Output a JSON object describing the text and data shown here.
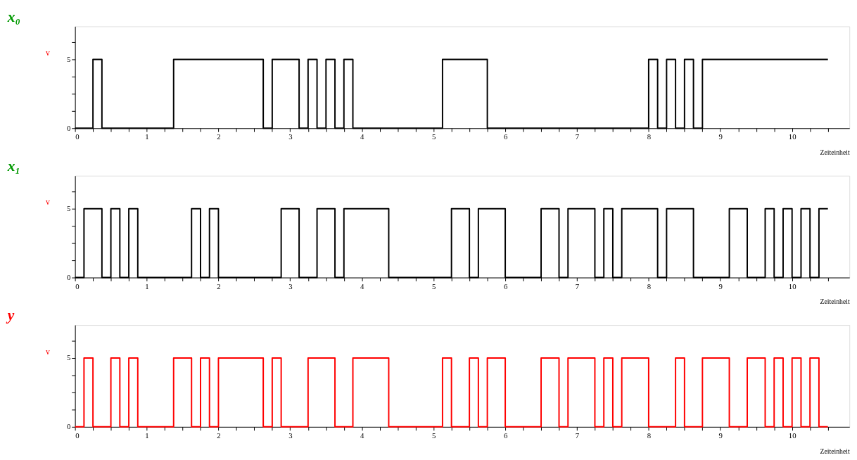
{
  "chart_data": [
    {
      "type": "step",
      "title": "x₀",
      "ylabel": "v",
      "xlabel": "Zeiteinheit",
      "xlim": [
        0,
        10.8
      ],
      "ylim": [
        0,
        7.4
      ],
      "xticks": [
        0,
        {
          "value": 0.25,
          "label": null
        },
        {
          "value": 0.5,
          "label": null
        },
        {
          "value": 0.75,
          "label": null
        },
        1,
        {
          "value": 1.25,
          "label": null
        },
        {
          "value": 1.5,
          "label": null
        },
        {
          "value": 1.75,
          "label": null
        },
        2,
        {
          "value": 2.25,
          "label": null
        },
        {
          "value": 2.5,
          "label": null
        },
        {
          "value": 2.75,
          "label": null
        },
        3,
        {
          "value": 3.25,
          "label": null
        },
        {
          "value": 3.5,
          "label": null
        },
        {
          "value": 3.75,
          "label": null
        },
        4,
        {
          "value": 4.25,
          "label": null
        },
        {
          "value": 4.5,
          "label": null
        },
        {
          "value": 4.75,
          "label": null
        },
        5,
        {
          "value": 5.25,
          "label": null
        },
        {
          "value": 5.5,
          "label": null
        },
        {
          "value": 5.75,
          "label": null
        },
        6,
        {
          "value": 6.25,
          "label": null
        },
        {
          "value": 6.5,
          "label": null
        },
        {
          "value": 6.75,
          "label": null
        },
        7,
        {
          "value": 7.25,
          "label": null
        },
        {
          "value": 7.5,
          "label": null
        },
        {
          "value": 7.75,
          "label": null
        },
        8,
        {
          "value": 8.25,
          "label": null
        },
        {
          "value": 8.5,
          "label": null
        },
        {
          "value": 8.75,
          "label": null
        },
        9,
        {
          "value": 9.25,
          "label": null
        },
        {
          "value": 9.5,
          "label": null
        },
        {
          "value": 9.75,
          "label": null
        },
        10,
        {
          "value": 10.25,
          "label": null
        },
        {
          "value": 10.5,
          "label": null
        }
      ],
      "yticks": [
        0,
        {
          "value": 1.25,
          "label": null
        },
        {
          "value": 2.5,
          "label": null
        },
        {
          "value": 3.75,
          "label": null
        },
        5,
        {
          "value": 6.25,
          "label": null
        }
      ],
      "grid": false,
      "marker": "none",
      "line_style": "solid",
      "series": [
        {
          "color": "#000000",
          "x": [
            0,
            0.25,
            0.375,
            1.375,
            2.625,
            2.75,
            3.125,
            3.25,
            3.375,
            3.5,
            3.625,
            3.75,
            3.875,
            5.125,
            5.75,
            8,
            8.125,
            8.25,
            8.375,
            8.5,
            8.625,
            8.75,
            10.5
          ],
          "values": [
            0,
            5,
            0,
            5,
            0,
            5,
            0,
            5,
            0,
            5,
            0,
            5,
            0,
            5,
            0,
            5,
            0,
            5,
            0,
            5,
            0,
            5,
            5
          ]
        }
      ]
    },
    {
      "type": "step",
      "title": "x₁",
      "ylabel": "v",
      "xlabel": "Zeiteinheit",
      "xlim": [
        0,
        10.8
      ],
      "ylim": [
        0,
        7.4
      ],
      "xticks": [
        0,
        {
          "value": 0.25,
          "label": null
        },
        {
          "value": 0.5,
          "label": null
        },
        {
          "value": 0.75,
          "label": null
        },
        1,
        {
          "value": 1.25,
          "label": null
        },
        {
          "value": 1.5,
          "label": null
        },
        {
          "value": 1.75,
          "label": null
        },
        2,
        {
          "value": 2.25,
          "label": null
        },
        {
          "value": 2.5,
          "label": null
        },
        {
          "value": 2.75,
          "label": null
        },
        3,
        {
          "value": 3.25,
          "label": null
        },
        {
          "value": 3.5,
          "label": null
        },
        {
          "value": 3.75,
          "label": null
        },
        4,
        {
          "value": 4.25,
          "label": null
        },
        {
          "value": 4.5,
          "label": null
        },
        {
          "value": 4.75,
          "label": null
        },
        5,
        {
          "value": 5.25,
          "label": null
        },
        {
          "value": 5.5,
          "label": null
        },
        {
          "value": 5.75,
          "label": null
        },
        6,
        {
          "value": 6.25,
          "label": null
        },
        {
          "value": 6.5,
          "label": null
        },
        {
          "value": 6.75,
          "label": null
        },
        7,
        {
          "value": 7.25,
          "label": null
        },
        {
          "value": 7.5,
          "label": null
        },
        {
          "value": 7.75,
          "label": null
        },
        8,
        {
          "value": 8.25,
          "label": null
        },
        {
          "value": 8.5,
          "label": null
        },
        {
          "value": 8.75,
          "label": null
        },
        9,
        {
          "value": 9.25,
          "label": null
        },
        {
          "value": 9.5,
          "label": null
        },
        {
          "value": 9.75,
          "label": null
        },
        10,
        {
          "value": 10.25,
          "label": null
        },
        {
          "value": 10.5,
          "label": null
        }
      ],
      "yticks": [
        0,
        {
          "value": 1.25,
          "label": null
        },
        {
          "value": 2.5,
          "label": null
        },
        {
          "value": 3.75,
          "label": null
        },
        5,
        {
          "value": 6.25,
          "label": null
        }
      ],
      "grid": false,
      "marker": "none",
      "line_style": "solid",
      "series": [
        {
          "color": "#000000",
          "x": [
            0,
            0.125,
            0.375,
            0.5,
            0.625,
            0.75,
            0.875,
            1.625,
            1.75,
            1.875,
            2,
            2.875,
            3.125,
            3.375,
            3.625,
            3.75,
            4.375,
            5.25,
            5.5,
            5.625,
            6,
            6.5,
            6.75,
            6.875,
            7.25,
            7.375,
            7.5,
            7.625,
            8.125,
            8.25,
            8.625,
            9.125,
            9.375,
            9.625,
            9.75,
            9.875,
            10,
            10.125,
            10.25,
            10.375,
            10.5
          ],
          "values": [
            0,
            5,
            0,
            5,
            0,
            5,
            0,
            5,
            0,
            5,
            0,
            5,
            0,
            5,
            0,
            5,
            0,
            5,
            0,
            5,
            0,
            5,
            0,
            5,
            0,
            5,
            0,
            5,
            0,
            5,
            0,
            5,
            0,
            5,
            0,
            5,
            0,
            5,
            0,
            5,
            5
          ]
        }
      ]
    },
    {
      "type": "step",
      "title": "y",
      "ylabel": "v",
      "xlabel": "Zeiteinheit",
      "xlim": [
        0,
        10.8
      ],
      "ylim": [
        0,
        7.4
      ],
      "xticks": [
        0,
        {
          "value": 0.25,
          "label": null
        },
        {
          "value": 0.5,
          "label": null
        },
        {
          "value": 0.75,
          "label": null
        },
        1,
        {
          "value": 1.25,
          "label": null
        },
        {
          "value": 1.5,
          "label": null
        },
        {
          "value": 1.75,
          "label": null
        },
        2,
        {
          "value": 2.25,
          "label": null
        },
        {
          "value": 2.5,
          "label": null
        },
        {
          "value": 2.75,
          "label": null
        },
        3,
        {
          "value": 3.25,
          "label": null
        },
        {
          "value": 3.5,
          "label": null
        },
        {
          "value": 3.75,
          "label": null
        },
        4,
        {
          "value": 4.25,
          "label": null
        },
        {
          "value": 4.5,
          "label": null
        },
        {
          "value": 4.75,
          "label": null
        },
        5,
        {
          "value": 5.25,
          "label": null
        },
        {
          "value": 5.5,
          "label": null
        },
        {
          "value": 5.75,
          "label": null
        },
        6,
        {
          "value": 6.25,
          "label": null
        },
        {
          "value": 6.5,
          "label": null
        },
        {
          "value": 6.75,
          "label": null
        },
        7,
        {
          "value": 7.25,
          "label": null
        },
        {
          "value": 7.5,
          "label": null
        },
        {
          "value": 7.75,
          "label": null
        },
        8,
        {
          "value": 8.25,
          "label": null
        },
        {
          "value": 8.5,
          "label": null
        },
        {
          "value": 8.75,
          "label": null
        },
        9,
        {
          "value": 9.25,
          "label": null
        },
        {
          "value": 9.5,
          "label": null
        },
        {
          "value": 9.75,
          "label": null
        },
        10,
        {
          "value": 10.25,
          "label": null
        },
        {
          "value": 10.5,
          "label": null
        }
      ],
      "yticks": [
        0,
        {
          "value": 1.25,
          "label": null
        },
        {
          "value": 2.5,
          "label": null
        },
        {
          "value": 3.75,
          "label": null
        },
        5,
        {
          "value": 6.25,
          "label": null
        }
      ],
      "grid": false,
      "marker": "none",
      "line_style": "solid",
      "series": [
        {
          "color": "#ff0000",
          "x": [
            0,
            0.125,
            0.25,
            0.5,
            0.625,
            0.75,
            0.875,
            1.375,
            1.625,
            1.75,
            1.875,
            2,
            2.625,
            2.75,
            2.875,
            3.25,
            3.625,
            3.875,
            4.375,
            5.125,
            5.25,
            5.5,
            5.625,
            5.75,
            6,
            6.5,
            6.75,
            6.875,
            7.25,
            7.375,
            7.5,
            7.625,
            8,
            8.375,
            8.5,
            8.75,
            9.125,
            9.375,
            9.625,
            9.75,
            9.875,
            10,
            10.125,
            10.25,
            10.375,
            10.5
          ],
          "values": [
            0,
            5,
            0,
            5,
            0,
            5,
            0,
            5,
            0,
            5,
            0,
            5,
            0,
            5,
            0,
            5,
            0,
            5,
            0,
            5,
            0,
            5,
            0,
            5,
            0,
            5,
            0,
            5,
            0,
            5,
            0,
            5,
            0,
            5,
            0,
            5,
            0,
            5,
            0,
            5,
            0,
            5,
            0,
            5,
            0,
            0
          ]
        }
      ]
    }
  ]
}
